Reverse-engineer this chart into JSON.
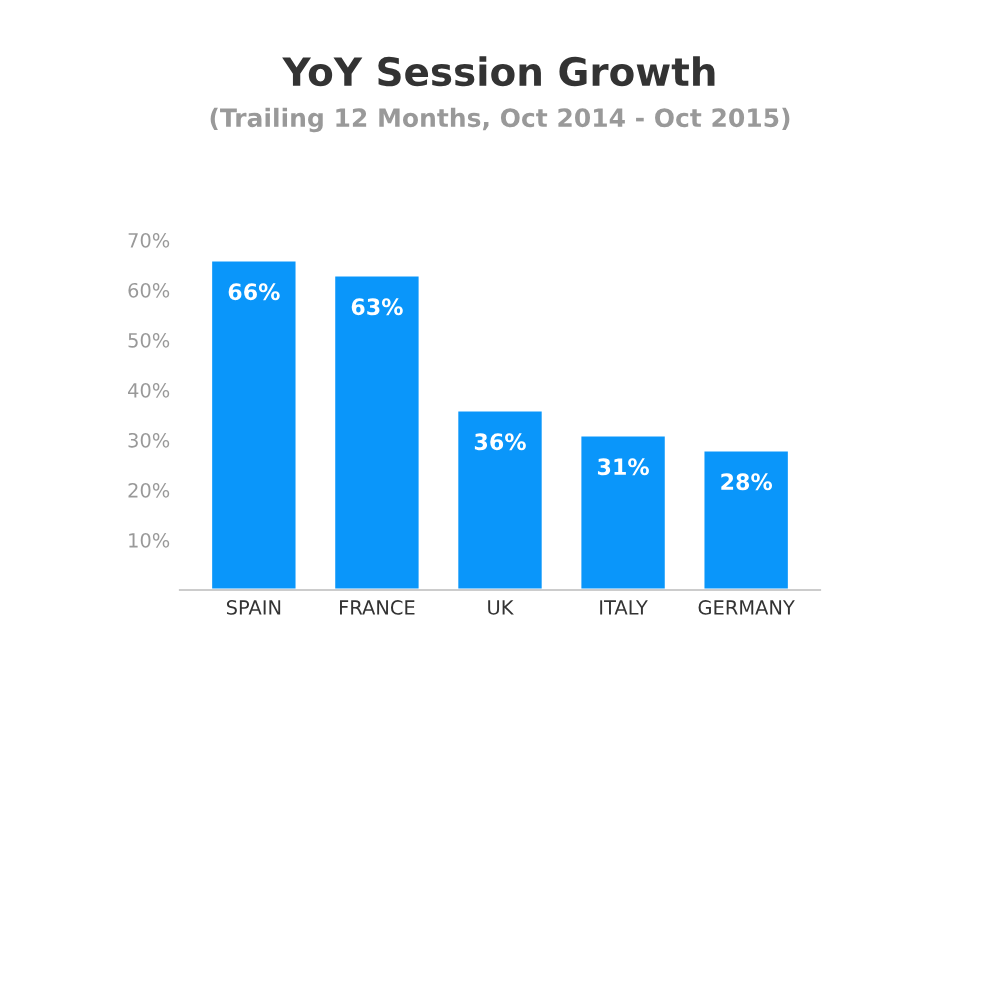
{
  "chart_data": {
    "type": "bar",
    "title": "YoY Session Growth",
    "subtitle": "(Trailing 12 Months, Oct 2014 - Oct 2015)",
    "categories": [
      "SPAIN",
      "FRANCE",
      "UK",
      "ITALY",
      "GERMANY"
    ],
    "values": [
      66,
      63,
      36,
      31,
      28
    ],
    "value_labels": [
      "66%",
      "63%",
      "36%",
      "31%",
      "28%"
    ],
    "color": "#0a96fa",
    "ylim": [
      0,
      70
    ],
    "yticks": [
      {
        "value": 10,
        "label": "10%"
      },
      {
        "value": 20,
        "label": "20%"
      },
      {
        "value": 30,
        "label": "30%"
      },
      {
        "value": 40,
        "label": "40%"
      },
      {
        "value": 50,
        "label": "50%"
      },
      {
        "value": 60,
        "label": "60%"
      },
      {
        "value": 70,
        "label": "70%"
      }
    ],
    "grid": false,
    "legend": false
  }
}
